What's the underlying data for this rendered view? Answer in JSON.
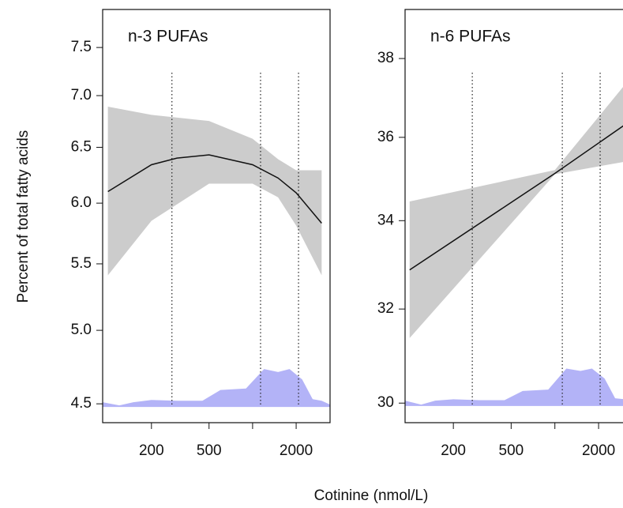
{
  "axis_labels": {
    "x": "Cotinine (nmol/L)",
    "y": "Percent of total fatty acids"
  },
  "chart_data": [
    {
      "type": "line",
      "title": "n-3 PUFAs",
      "xlog": true,
      "ylog": true,
      "xlim": [
        92,
        3430
      ],
      "ylim": [
        4.38,
        7.92
      ],
      "xticks": [
        200,
        500,
        2000
      ],
      "xticks_unlabeled": [
        1000
      ],
      "yticks": [
        4.5,
        {
          "value": 5,
          "label": "5.0"
        },
        5.5,
        {
          "value": 6,
          "label": "6.0"
        },
        6.5,
        {
          "value": 7,
          "label": "7.0"
        },
        7.5
      ],
      "vlines": [
        277,
        1135,
        2077
      ],
      "band": {
        "color": "#cccccc",
        "x": [
          100,
          200,
          500,
          1000,
          1500,
          2000,
          3000
        ],
        "upper": [
          6.89,
          6.81,
          6.75,
          6.58,
          6.39,
          6.29,
          6.29
        ],
        "lower": [
          5.41,
          5.85,
          6.17,
          6.17,
          6.05,
          5.81,
          5.41
        ]
      },
      "line": {
        "color": "#111111",
        "x": [
          100,
          200,
          300,
          500,
          1000,
          1500,
          2000,
          3000
        ],
        "values": [
          6.1,
          6.34,
          6.4,
          6.43,
          6.34,
          6.22,
          6.09,
          5.83
        ]
      },
      "density": {
        "color": "#b3b3f7",
        "base": 4.48,
        "x": [
          92,
          120,
          150,
          200,
          300,
          450,
          600,
          900,
          1200,
          1500,
          1800,
          2200,
          2600,
          3000,
          3430
        ],
        "values": [
          4.51,
          4.49,
          4.51,
          4.525,
          4.52,
          4.52,
          4.59,
          4.6,
          4.73,
          4.71,
          4.73,
          4.66,
          4.53,
          4.52,
          4.495
        ]
      }
    },
    {
      "type": "line",
      "title": "n-6 PUFAs",
      "xlog": true,
      "ylog": true,
      "xlim": [
        93,
        3380
      ],
      "ylim": [
        29.6,
        39.3
      ],
      "xticks": [
        200,
        500,
        2000
      ],
      "xticks_unlabeled": [
        1000
      ],
      "yticks": [
        30,
        32,
        34,
        36,
        38
      ],
      "vlines": [
        270,
        1125,
        2050
      ],
      "band": {
        "color": "#cccccc",
        "x": [
          100,
          1000,
          3000
        ],
        "upper": [
          34.45,
          35.2,
          37.3
        ],
        "lower": [
          31.37,
          35.1,
          35.4
        ]
      },
      "line": {
        "color": "#111111",
        "x": [
          100,
          1000,
          3000
        ],
        "values": [
          32.87,
          35.12,
          36.3
        ]
      },
      "density": {
        "color": "#b3b3f7",
        "base": 29.94,
        "x": [
          93,
          120,
          150,
          200,
          300,
          450,
          600,
          900,
          1200,
          1500,
          1800,
          2200,
          2600,
          3000
        ],
        "values": [
          30.05,
          29.97,
          30.05,
          30.08,
          30.06,
          30.06,
          30.25,
          30.28,
          30.72,
          30.67,
          30.72,
          30.51,
          30.1,
          30.08
        ]
      }
    }
  ]
}
